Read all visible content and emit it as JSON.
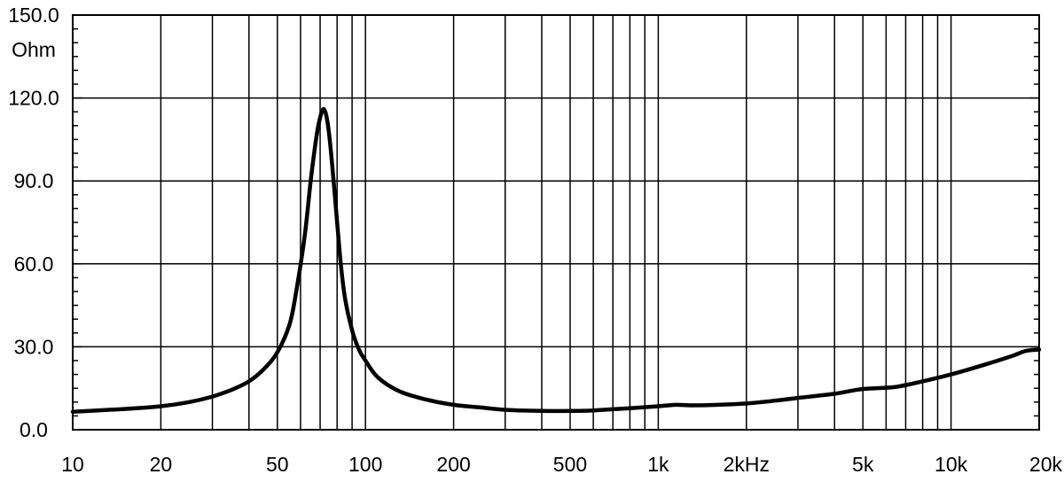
{
  "chart_data": {
    "type": "line",
    "title": "",
    "xlabel": "",
    "ylabel": "Ohm",
    "x_scale": "log",
    "xlim": [
      10,
      20000
    ],
    "ylim": [
      0,
      150
    ],
    "grid": true,
    "y_ticks": [
      {
        "value": 0,
        "label": "0.0"
      },
      {
        "value": 30,
        "label": "30.0"
      },
      {
        "value": 60,
        "label": "60.0"
      },
      {
        "value": 90,
        "label": "90.0"
      },
      {
        "value": 120,
        "label": "120.0"
      },
      {
        "value": 150,
        "label": "150.0"
      }
    ],
    "x_ticks": [
      {
        "value": 10,
        "label": "10"
      },
      {
        "value": 20,
        "label": "20"
      },
      {
        "value": 50,
        "label": "50"
      },
      {
        "value": 100,
        "label": "100"
      },
      {
        "value": 200,
        "label": "200"
      },
      {
        "value": 500,
        "label": "500"
      },
      {
        "value": 1000,
        "label": "1k"
      },
      {
        "value": 2000,
        "label": "2kHz"
      },
      {
        "value": 5000,
        "label": "5k"
      },
      {
        "value": 10000,
        "label": "10k"
      },
      {
        "value": 20000,
        "label": "20k"
      }
    ],
    "x_gridlines": [
      20,
      30,
      40,
      50,
      60,
      70,
      80,
      90,
      100,
      200,
      300,
      400,
      500,
      600,
      700,
      800,
      900,
      1000,
      2000,
      3000,
      4000,
      5000,
      6000,
      7000,
      8000,
      9000,
      10000
    ],
    "series": [
      {
        "color": "#000000",
        "x": [
          10,
          15,
          20,
          25,
          30,
          35,
          40,
          45,
          50,
          55,
          58,
          62,
          65,
          68,
          70,
          72,
          74,
          76,
          79,
          82,
          85,
          90,
          95,
          100,
          110,
          130,
          160,
          200,
          250,
          300,
          400,
          500,
          600,
          800,
          1000,
          1150,
          1300,
          1600,
          2000,
          2500,
          3000,
          4000,
          4800,
          5500,
          6500,
          8000,
          10000,
          13000,
          16000,
          18000,
          20000
        ],
        "y": [
          6.5,
          7.5,
          8.5,
          10,
          12,
          14.5,
          17.5,
          22,
          28,
          38,
          50,
          70,
          90,
          106,
          113,
          116,
          112,
          102,
          82,
          62,
          48,
          36,
          29,
          25,
          19,
          14,
          11,
          9,
          8,
          7.2,
          6.8,
          6.8,
          7,
          7.8,
          8.5,
          9,
          8.8,
          9,
          9.5,
          10.5,
          11.5,
          13,
          14.5,
          15,
          15.5,
          17.5,
          20,
          23.5,
          26.5,
          28.5,
          29
        ]
      }
    ]
  }
}
